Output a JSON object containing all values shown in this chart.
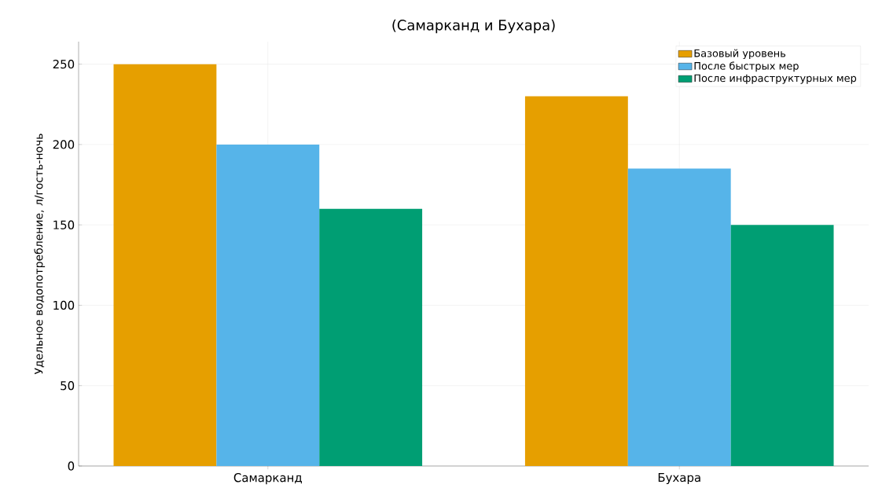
{
  "chart_data": {
    "type": "bar",
    "title": "(Самарканд и Бухара)",
    "ylabel": "Удельное водопотребление, л/гость-ночь",
    "categories": [
      "Самарканд",
      "Бухара"
    ],
    "series": [
      {
        "name": "Базовый уровень",
        "color": "#e69f00",
        "values": [
          250,
          230
        ]
      },
      {
        "name": "После быстрых мер",
        "color": "#56b4e9",
        "values": [
          200,
          185
        ]
      },
      {
        "name": "После инфраструктурных мер",
        "color": "#009e73",
        "values": [
          160,
          150
        ]
      }
    ],
    "ylim": [
      0,
      264
    ],
    "yticks": [
      0,
      50,
      100,
      150,
      200,
      250
    ],
    "grid": true,
    "legend": "top right"
  }
}
